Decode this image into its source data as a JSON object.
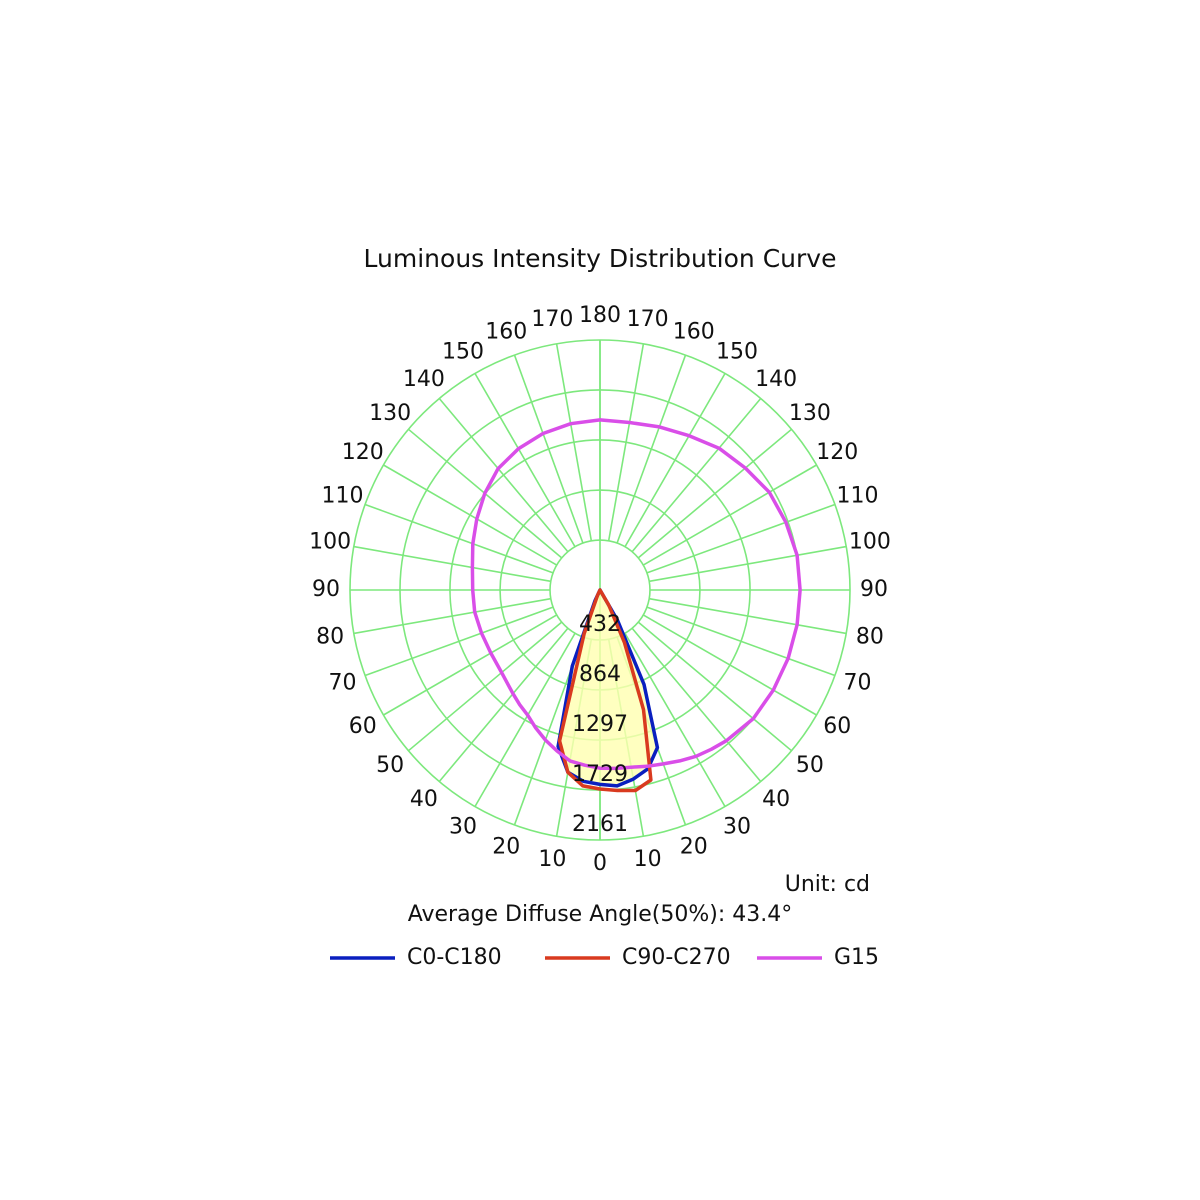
{
  "chart_data": {
    "type": "polar",
    "title": "Luminous Intensity Distribution Curve",
    "unit_note": "Unit: cd",
    "annotation": "Average Diffuse Angle(50%): 43.4°",
    "angles": [
      0,
      5,
      10,
      15,
      20,
      25,
      30,
      35,
      40,
      50,
      60,
      70,
      80,
      90,
      100,
      110,
      120,
      130,
      140,
      150,
      160,
      170,
      180
    ],
    "angle_ticks": [
      0,
      10,
      20,
      30,
      40,
      50,
      60,
      70,
      80,
      90,
      100,
      110,
      120,
      130,
      140,
      150,
      160,
      170,
      180
    ],
    "rlim": [
      0,
      2161
    ],
    "rticks": [
      432,
      864,
      1297,
      1729,
      2161
    ],
    "series": [
      {
        "name": "C0-C180",
        "color": "#0a1fbf",
        "fill": "#ffffb0",
        "right": [
          1680,
          1700,
          1660,
          1600,
          1450,
          900,
          300,
          0,
          0,
          0,
          0,
          0,
          0,
          0,
          0,
          0,
          0,
          0,
          0,
          0,
          0,
          0,
          0
        ],
        "left": [
          1680,
          1660,
          1600,
          1400,
          700,
          100,
          0,
          0,
          0,
          0,
          0,
          0,
          0,
          0,
          0,
          0,
          0,
          0,
          0,
          0,
          0,
          0,
          0
        ]
      },
      {
        "name": "C90-C270",
        "color": "#d93a1f",
        "right": [
          1720,
          1740,
          1760,
          1700,
          1100,
          500,
          150,
          0,
          0,
          0,
          0,
          0,
          0,
          0,
          0,
          0,
          0,
          0,
          0,
          0,
          0,
          0,
          0
        ],
        "left": [
          1720,
          1700,
          1600,
          1350,
          400,
          50,
          0,
          0,
          0,
          0,
          0,
          0,
          0,
          0,
          0,
          0,
          0,
          0,
          0,
          0,
          0,
          0,
          0
        ]
      },
      {
        "name": "G15",
        "color": "#d94ee8",
        "right": [
          1540,
          1548,
          1555,
          1578,
          1600,
          1630,
          1660,
          1680,
          1700,
          1730,
          1730,
          1730,
          1730,
          1730,
          1730,
          1710,
          1690,
          1640,
          1600,
          1540,
          1500,
          1470,
          1470
        ],
        "left": [
          1540,
          1520,
          1500,
          1440,
          1380,
          1315,
          1250,
          1210,
          1170,
          1110,
          1090,
          1090,
          1100,
          1100,
          1120,
          1170,
          1230,
          1300,
          1370,
          1410,
          1440,
          1460,
          1470
        ]
      }
    ]
  }
}
